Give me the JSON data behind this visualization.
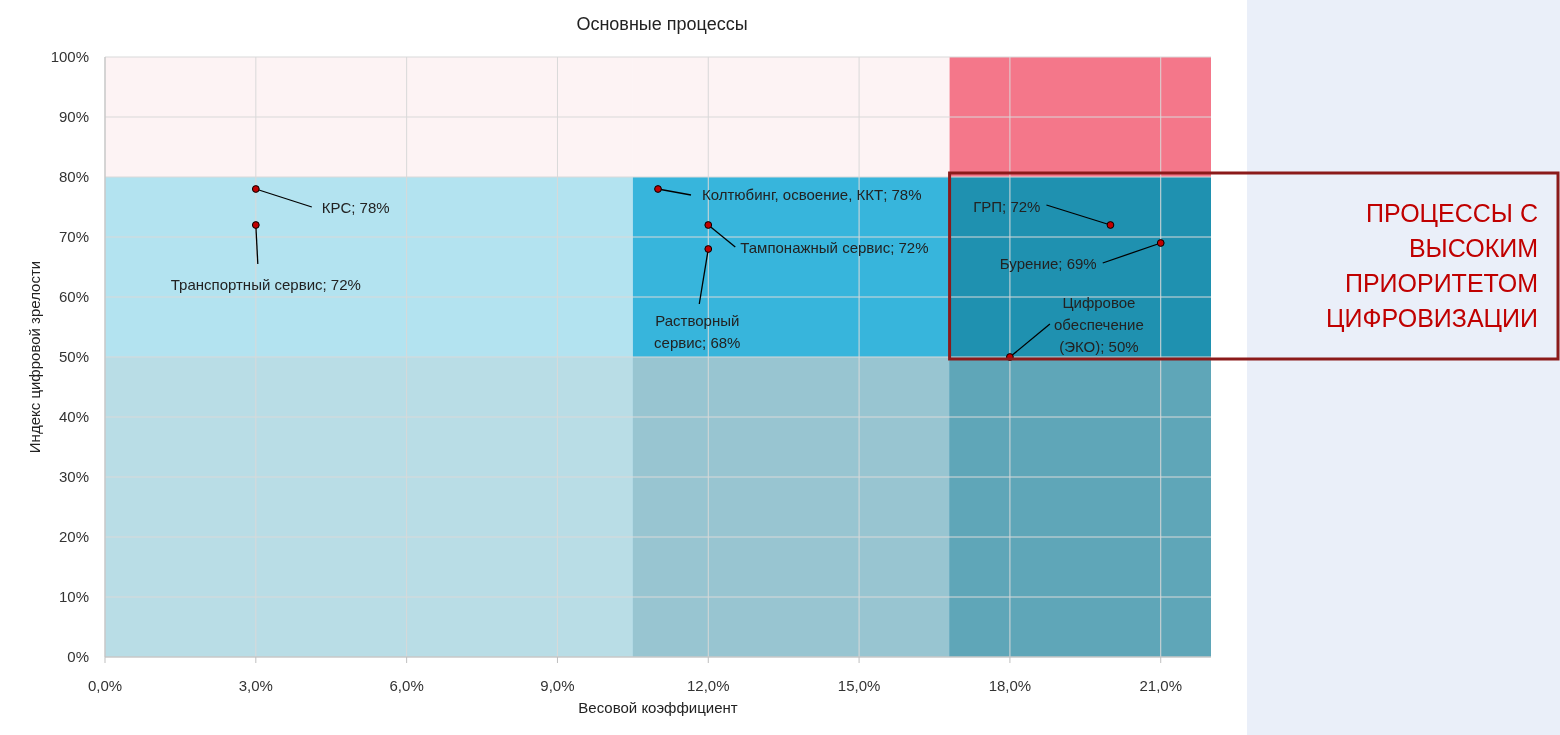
{
  "chart_data": {
    "type": "scatter",
    "title": "Основные процессы",
    "xlabel": "Весовой коэффициент",
    "ylabel": "Индекс цифровой зрелости",
    "xlim": [
      0,
      22
    ],
    "ylim": [
      0,
      100
    ],
    "xticks": [
      {
        "value": 0,
        "label": "0,0%"
      },
      {
        "value": 3,
        "label": "3,0%"
      },
      {
        "value": 6,
        "label": "6,0%"
      },
      {
        "value": 9,
        "label": "9,0%"
      },
      {
        "value": 12,
        "label": "12,0%"
      },
      {
        "value": 15,
        "label": "15,0%"
      },
      {
        "value": 18,
        "label": "18,0%"
      },
      {
        "value": 21,
        "label": "21,0%"
      }
    ],
    "yticks": [
      {
        "value": 0,
        "label": "0%"
      },
      {
        "value": 10,
        "label": "10%"
      },
      {
        "value": 20,
        "label": "20%"
      },
      {
        "value": 30,
        "label": "30%"
      },
      {
        "value": 40,
        "label": "40%"
      },
      {
        "value": 50,
        "label": "50%"
      },
      {
        "value": 60,
        "label": "60%"
      },
      {
        "value": 70,
        "label": "70%"
      },
      {
        "value": 80,
        "label": "80%"
      },
      {
        "value": 90,
        "label": "90%"
      },
      {
        "value": 100,
        "label": "100%"
      }
    ],
    "grid": true,
    "series": [
      {
        "type": "area",
        "color": "#fdf3f4",
        "x": [
          0,
          10.5
        ],
        "values": [
          100,
          100
        ]
      },
      {
        "type": "area",
        "color": "#fdf3f4",
        "x": [
          10.5,
          16.8
        ],
        "values": [
          100,
          100
        ]
      },
      {
        "type": "area",
        "color": "#f4778a",
        "x": [
          16.8,
          22
        ],
        "values": [
          100,
          100
        ]
      },
      {
        "type": "area",
        "color": "#b3e3f0",
        "x": [
          0,
          10.5
        ],
        "values": [
          80,
          80
        ]
      },
      {
        "type": "area",
        "color": "#37b5dc",
        "x": [
          10.5,
          16.8
        ],
        "values": [
          80,
          80
        ]
      },
      {
        "type": "area",
        "color": "#1f91b0",
        "x": [
          16.8,
          22
        ],
        "values": [
          80,
          80
        ]
      },
      {
        "type": "area",
        "color": "#b9dde6",
        "x": [
          0,
          10.5
        ],
        "values": [
          50,
          50
        ]
      },
      {
        "type": "area",
        "color": "#98c5d1",
        "x": [
          10.5,
          16.8
        ],
        "values": [
          50,
          50
        ]
      },
      {
        "type": "area",
        "color": "#5fa6b8",
        "x": [
          16.8,
          22
        ],
        "values": [
          50,
          50
        ]
      },
      {
        "color": "#c00000",
        "marker": "circle",
        "x": [
          3,
          3,
          11,
          12,
          12,
          20,
          21,
          18
        ],
        "values": [
          78,
          72,
          78,
          72,
          68,
          72,
          69,
          50
        ],
        "value_labels": [
          "КРС; 78%",
          "Транспортный сервис; 72%",
          "Колтюбинг, освоение, ККТ; 78%",
          "Тампонажный сервис; 72%",
          "Растворный сервис; 68%",
          "ГРП; 72%",
          "Бурение; 69%",
          "Цифровое обеспечение (ЭКО); 50%"
        ]
      }
    ],
    "annotations": [
      "ПРОЦЕССЫ С ВЫСОКИМ ПРИОРИТЕТОМ ЦИФРОВИЗАЦИИ"
    ]
  }
}
